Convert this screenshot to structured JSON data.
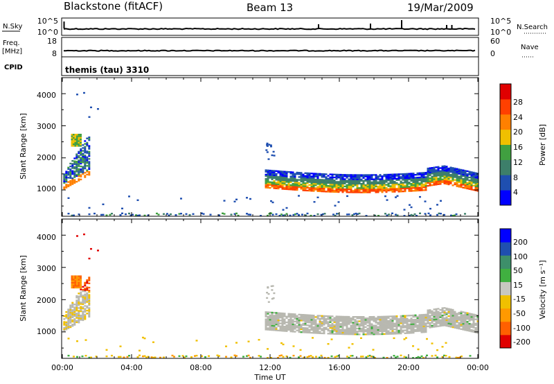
{
  "header": {
    "station": "Blackstone (fitACF)",
    "beam": "Beam 13",
    "date": "19/Mar/2009"
  },
  "strip_labels": {
    "nsky": "N.Sky",
    "nsearch": "N.Search",
    "freq_top": "Freq.",
    "freq_unit": "[MHz]",
    "nave": "Nave",
    "cpid": "CPID",
    "cpid_value": "themis (tau) 3310",
    "nsky_ticks": [
      "10^5",
      "10^0"
    ],
    "nsearch_ticks": [
      "10^5",
      "10^0"
    ],
    "freq_ticks": [
      "18",
      "8"
    ],
    "nave_ticks": [
      "60",
      "0"
    ]
  },
  "x_axis": {
    "label": "Time UT",
    "ticks": [
      "00:00",
      "04:00",
      "08:00",
      "12:00",
      "16:00",
      "20:00",
      "00:00"
    ]
  },
  "colors": {
    "power": [
      "#0000ff",
      "#1f4fb0",
      "#3d7f6a",
      "#40a040",
      "#f0c000",
      "#ff8000",
      "#ff4000",
      "#e00000"
    ],
    "velocity": [
      "#e00000",
      "#ff6000",
      "#ff9900",
      "#f0c000",
      "#c8c8c0",
      "#40b040",
      "#3d8f6a",
      "#1f4fb0",
      "#0000ff"
    ],
    "ground_scatter": "#b8b8b0"
  },
  "chart_data": [
    {
      "type": "line",
      "panel": "noise",
      "title": "",
      "xlabel": "",
      "ylabel": "N.Sky",
      "y_scale": "log",
      "ylim": [
        1,
        100000
      ],
      "x": [
        "00:00",
        "24:00"
      ],
      "series": [
        {
          "name": "N.Sky",
          "baseline": 10,
          "spikes_hours": [
            0.1,
            14.8,
            17.8,
            19.6,
            22.2,
            22.5
          ]
        }
      ]
    },
    {
      "type": "line",
      "panel": "frequency",
      "ylabel": "Freq. [MHz]",
      "ylim": [
        8,
        18
      ],
      "series": [
        {
          "name": "Freq.",
          "values_approx": 10.5
        }
      ]
    },
    {
      "type": "heatmap",
      "panel": "power",
      "xlabel": "Time UT",
      "ylabel": "Slant Range [km]",
      "xlim_hours": [
        0,
        24
      ],
      "ylim_km": [
        180,
        4500
      ],
      "y_ticks": [
        "1000",
        "2000",
        "3000",
        "4000"
      ],
      "colorbar": {
        "label": "Power [dB]",
        "ticks": [
          "4",
          "8",
          "12",
          "16",
          "20",
          "24",
          "28"
        ],
        "range": [
          0,
          30
        ]
      },
      "regions": [
        {
          "name": "early-echo",
          "start_h": 0.0,
          "end_h": 1.5,
          "range_min_km": 1000,
          "range_max_km": 2900
        },
        {
          "name": "main-band",
          "start_h": 11.7,
          "end_h": 24.0,
          "range_min_km": 1000,
          "range_max_km": 1700
        },
        {
          "name": "near-range",
          "start_h": 0.0,
          "end_h": 24.0,
          "range_min_km": 200,
          "range_max_km": 300
        }
      ]
    },
    {
      "type": "heatmap",
      "panel": "velocity",
      "xlabel": "Time UT",
      "ylabel": "Slant Range [km]",
      "xlim_hours": [
        0,
        24
      ],
      "ylim_km": [
        180,
        4500
      ],
      "y_ticks": [
        "1000",
        "2000",
        "3000",
        "4000"
      ],
      "colorbar": {
        "label": "Velocity [m s⁻¹]",
        "ticks": [
          "200",
          "100",
          "50",
          "15",
          "-15",
          "-50",
          "-100",
          "-200"
        ],
        "range": [
          -250,
          250
        ]
      },
      "regions": [
        {
          "name": "early-echo",
          "start_h": 0.0,
          "end_h": 1.5,
          "range_min_km": 1000,
          "range_max_km": 2900
        },
        {
          "name": "main-band-ground-scatter",
          "start_h": 11.7,
          "end_h": 24.0,
          "range_min_km": 1000,
          "range_max_km": 1700
        }
      ]
    }
  ]
}
